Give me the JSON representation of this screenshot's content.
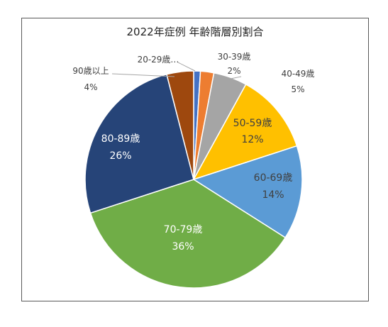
{
  "chart_data": {
    "type": "pie",
    "title": "2022年症例 年齢階層別割合",
    "slices": [
      {
        "label": "20-29歳…",
        "value": 1,
        "pct_label": "",
        "color": "#4472C4",
        "label_color": "#404040"
      },
      {
        "label": "30-39歳",
        "value": 2,
        "pct_label": "2%",
        "color": "#ED7D31",
        "label_color": "#404040"
      },
      {
        "label": "40-49歳",
        "value": 5,
        "pct_label": "5%",
        "color": "#A5A5A5",
        "label_color": "#404040"
      },
      {
        "label": "50-59歳",
        "value": 12,
        "pct_label": "12%",
        "color": "#FFC000",
        "label_color": "#404040"
      },
      {
        "label": "60-69歳",
        "value": 14,
        "pct_label": "14%",
        "color": "#5B9BD5",
        "label_color": "#404040"
      },
      {
        "label": "70-79歳",
        "value": 36,
        "pct_label": "36%",
        "color": "#70AD47",
        "label_color": "#ffffff"
      },
      {
        "label": "80-89歳",
        "value": 26,
        "pct_label": "26%",
        "color": "#264478",
        "label_color": "#ffffff"
      },
      {
        "label": "90歳以上",
        "value": 4,
        "pct_label": "4%",
        "color": "#9E480E",
        "label_color": "#404040"
      }
    ]
  }
}
